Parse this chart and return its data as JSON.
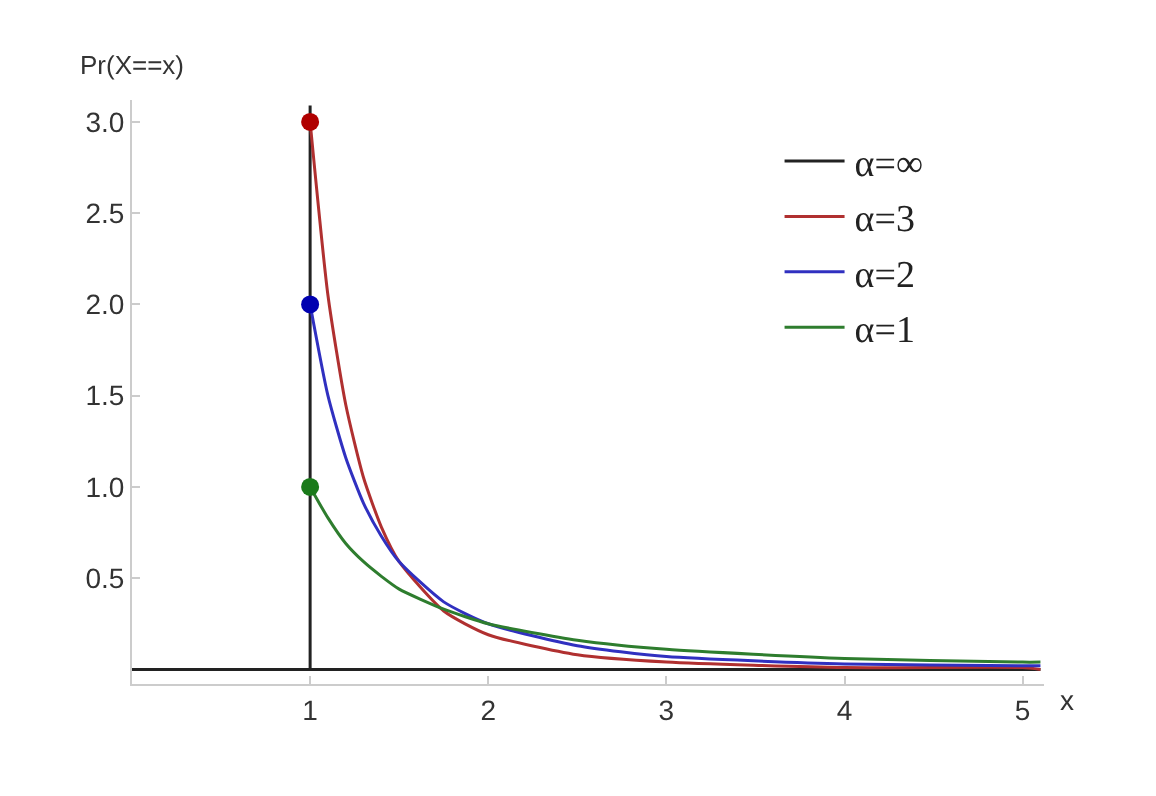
{
  "chart_data": {
    "type": "line",
    "xlabel": "x",
    "ylabel": "Pr(X==x)",
    "xlim": [
      0,
      5.12
    ],
    "ylim": [
      -0.08,
      3.12
    ],
    "xticks": [
      1,
      2,
      3,
      4,
      5
    ],
    "yticks": [
      {
        "value": 0.5,
        "label": "0.5"
      },
      {
        "value": 1,
        "label": "1.0"
      },
      {
        "value": 1.5,
        "label": "1.5"
      },
      {
        "value": 2,
        "label": "2.0"
      },
      {
        "value": 2.5,
        "label": "2.5"
      },
      {
        "value": 3,
        "label": "3.0"
      }
    ],
    "grid": false,
    "legend": "top right",
    "marker": "none",
    "line_style": "solid",
    "series": [
      {
        "name": "α=∞",
        "color": "#222222",
        "x": [
          0,
          1,
          1,
          1,
          5.1
        ],
        "values": [
          0,
          0,
          3.09,
          0,
          0
        ]
      },
      {
        "name": "α=3",
        "color": "#b03030",
        "x": [
          1,
          1.1,
          1.2,
          1.3,
          1.4,
          1.5,
          1.75,
          2,
          2.5,
          3,
          4,
          5,
          5.1
        ],
        "values": [
          3,
          2.05,
          1.45,
          1.05,
          0.78,
          0.59,
          0.32,
          0.19,
          0.08,
          0.04,
          0.01,
          0.01,
          0
        ]
      },
      {
        "name": "α=2",
        "color": "#3030c0",
        "x": [
          1,
          1.1,
          1.2,
          1.3,
          1.4,
          1.5,
          1.75,
          2,
          2.5,
          3,
          4,
          5,
          5.1
        ],
        "values": [
          2,
          1.5,
          1.16,
          0.91,
          0.73,
          0.59,
          0.37,
          0.25,
          0.13,
          0.07,
          0.03,
          0.02,
          0.02
        ]
      },
      {
        "name": "α=1",
        "color": "#2e7d2e",
        "x": [
          1,
          1.1,
          1.2,
          1.3,
          1.4,
          1.5,
          1.75,
          2,
          2.5,
          3,
          4,
          5,
          5.1
        ],
        "values": [
          1,
          0.83,
          0.69,
          0.59,
          0.51,
          0.44,
          0.33,
          0.25,
          0.16,
          0.11,
          0.06,
          0.04,
          0.04
        ]
      },
      {
        "type": "scatter",
        "marker": "circle",
        "x": [
          1,
          1,
          1
        ],
        "values": [
          3,
          2,
          1
        ],
        "colors": [
          "#b00000",
          "#0000b0",
          "#1a7a1a"
        ]
      }
    ]
  }
}
